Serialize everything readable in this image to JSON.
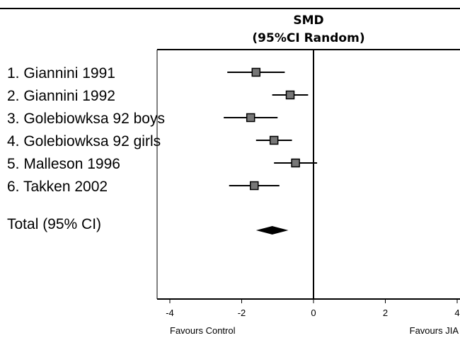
{
  "chart_data": {
    "type": "forest",
    "header": {
      "line1": "SMD",
      "line2": "(95%CI Random)"
    },
    "xlim": [
      -4,
      4
    ],
    "ticks": [
      -4,
      -2,
      0,
      2,
      4
    ],
    "tick_labels": [
      "-4",
      "-2",
      "0",
      "2",
      "4"
    ],
    "footer_left": "Favours Control",
    "footer_right": "Favours JIA",
    "studies": [
      {
        "label": "1. Giannini 1991",
        "smd": -1.6,
        "ci": [
          -2.4,
          -0.8
        ]
      },
      {
        "label": "2. Giannini 1992",
        "smd": -0.65,
        "ci": [
          -1.15,
          -0.15
        ]
      },
      {
        "label": "3. Golebiowksa 92 boys",
        "smd": -1.75,
        "ci": [
          -2.5,
          -1.0
        ]
      },
      {
        "label": "4. Golebiowksa 92 girls",
        "smd": -1.1,
        "ci": [
          -1.6,
          -0.6
        ]
      },
      {
        "label": "5. Malleson 1996",
        "smd": -0.5,
        "ci": [
          -1.1,
          0.1
        ]
      },
      {
        "label": "6. Takken 2002",
        "smd": -1.65,
        "ci": [
          -2.35,
          -0.95
        ]
      }
    ],
    "total": {
      "label": "Total (95% CI)",
      "smd": -1.15,
      "ci": [
        -1.6,
        -0.7
      ]
    }
  }
}
